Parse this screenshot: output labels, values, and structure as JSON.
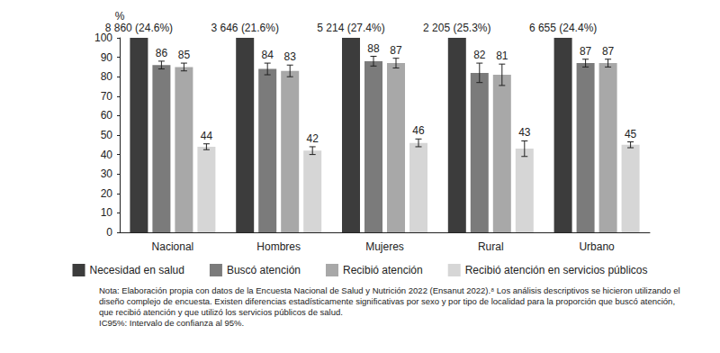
{
  "chart_data": {
    "type": "bar",
    "y_label": "%",
    "categories": [
      "Nacional",
      "Hombres",
      "Mujeres",
      "Rural",
      "Urbano"
    ],
    "series": [
      {
        "name": "Necesidad en salud",
        "color": "#3c3c3c",
        "values": [
          100,
          100,
          100,
          100,
          100
        ],
        "annotations": [
          "8 860 (24.6%)",
          "3 646 (21.6%)",
          "5 214 (27.4%)",
          "2 205 (25.3%)",
          "6 655 (24.4%)"
        ]
      },
      {
        "name": "Buscó atención",
        "color": "#7b7b7b",
        "values": [
          86,
          84,
          88,
          82,
          87
        ],
        "ci": [
          [
            84,
            88
          ],
          [
            81,
            87
          ],
          [
            85.5,
            90.5
          ],
          [
            77,
            87
          ],
          [
            85,
            89
          ]
        ]
      },
      {
        "name": "Recibió atención",
        "color": "#a8a8a8",
        "values": [
          85,
          83,
          87,
          81,
          87
        ],
        "ci": [
          [
            83,
            87
          ],
          [
            80,
            86
          ],
          [
            84.5,
            89.5
          ],
          [
            75.5,
            86.5
          ],
          [
            85,
            89
          ]
        ]
      },
      {
        "name": "Recibió atención en servicios públicos",
        "color": "#d6d6d6",
        "values": [
          44,
          42,
          46,
          43,
          45
        ],
        "ci": [
          [
            42.5,
            45.5
          ],
          [
            40,
            44
          ],
          [
            44,
            48
          ],
          [
            39,
            47
          ],
          [
            43.5,
            46.5
          ]
        ]
      }
    ],
    "ylim": [
      0,
      100
    ],
    "yticks": [
      0,
      10,
      20,
      30,
      40,
      50,
      60,
      70,
      80,
      90,
      100
    ],
    "grid": false,
    "legend": "bottom",
    "data_labels": true,
    "note": [
      "Nota: Elaboración propia con datos de la Encuesta Nacional de Salud y Nutrición 2022 (Ensanut 2022).⁸ Los análisis descriptivos se hicieron utilizando el diseño complejo de encuesta. Existen diferencias estadísticamente significativas por sexo y por tipo de localidad para la proporción que buscó atención, que recibió atención y que utilizó los servicios públicos de salud.",
      "IC95%: Intervalo de confianza al 95%."
    ]
  }
}
